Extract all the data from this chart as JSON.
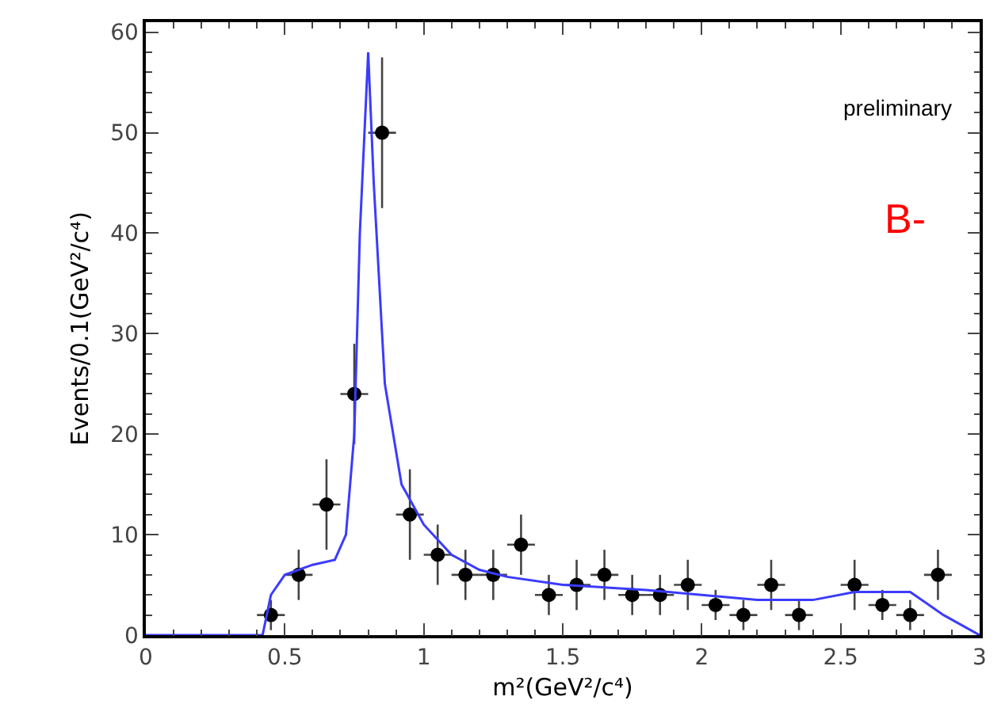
{
  "chart_data": {
    "type": "scatter",
    "xlabel": "m²(GeV²/c⁴)",
    "ylabel": "Events/0.1(GeV²/c⁴)",
    "xlim": [
      0,
      3
    ],
    "ylim": [
      0,
      61
    ],
    "xticks": [
      0,
      0.5,
      1,
      1.5,
      2,
      2.5,
      3
    ],
    "yticks": [
      0,
      10,
      20,
      30,
      40,
      50,
      60
    ],
    "grid": false,
    "annotations": [
      "preliminary",
      "B-"
    ],
    "series": [
      {
        "marker": "circle",
        "color": "#000000",
        "x": [
          0.45,
          0.55,
          0.65,
          0.75,
          0.85,
          0.95,
          1.05,
          1.15,
          1.25,
          1.35,
          1.45,
          1.55,
          1.65,
          1.75,
          1.85,
          1.95,
          2.05,
          2.15,
          2.25,
          2.35,
          2.55,
          2.65,
          2.75,
          2.85
        ],
        "values": [
          2,
          6,
          13,
          24,
          50,
          12,
          8,
          6,
          6,
          9,
          4,
          5,
          6,
          4,
          4,
          5,
          3,
          2,
          5,
          2,
          5,
          3,
          2,
          6
        ],
        "errors": [
          1.5,
          2.5,
          4.5,
          5,
          7.5,
          4.5,
          3,
          2.5,
          2.5,
          3,
          2,
          2.5,
          2.5,
          2,
          2,
          2.5,
          1.5,
          1.5,
          2.5,
          1.5,
          2.5,
          1.5,
          1.5,
          2.5
        ],
        "xerrors": [
          0.05,
          0.05,
          0.05,
          0.05,
          0.05,
          0.05,
          0.05,
          0.05,
          0.05,
          0.05,
          0.05,
          0.05,
          0.05,
          0.05,
          0.05,
          0.05,
          0.05,
          0.05,
          0.05,
          0.05,
          0.05,
          0.05,
          0.05,
          0.05
        ]
      },
      {
        "type": "line",
        "marker": "none",
        "color": "#3b3bff",
        "line_style": "solid",
        "x": [
          0,
          0.42,
          0.45,
          0.5,
          0.6,
          0.68,
          0.72,
          0.75,
          0.77,
          0.8,
          0.82,
          0.86,
          0.92,
          1.0,
          1.1,
          1.2,
          1.3,
          1.5,
          1.8,
          2.0,
          2.2,
          2.4,
          2.55,
          2.75,
          2.87,
          3.0
        ],
        "values": [
          0,
          0,
          4,
          6,
          7,
          7.5,
          10,
          20,
          40,
          58,
          45,
          25,
          15,
          11,
          8,
          6.5,
          5.8,
          5,
          4.5,
          4,
          3.5,
          3.5,
          4.3,
          4.3,
          2,
          0
        ]
      }
    ]
  }
}
